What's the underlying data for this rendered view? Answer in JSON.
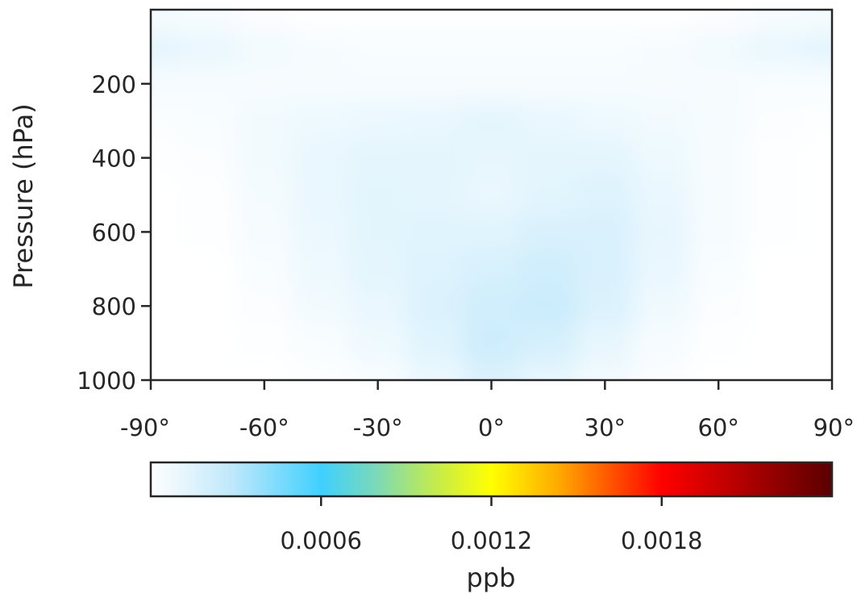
{
  "chart_data": {
    "type": "heatmap",
    "title": "",
    "xlabel": "",
    "ylabel": "Pressure (hPa)",
    "xlim": [
      -90,
      90
    ],
    "ylim": [
      1000,
      0
    ],
    "x_ticks": [
      -90,
      -60,
      -30,
      0,
      30,
      60,
      90
    ],
    "x_tick_labels": [
      "-90°",
      "-60°",
      "-30°",
      "0°",
      "30°",
      "60°",
      "90°"
    ],
    "y_ticks": [
      200,
      400,
      600,
      800,
      1000
    ],
    "y_tick_labels": [
      "200",
      "400",
      "600",
      "800",
      "1000"
    ],
    "grid": false,
    "latitude": [
      -90,
      -75,
      -60,
      -45,
      -30,
      -15,
      0,
      15,
      30,
      45,
      60,
      75,
      90
    ],
    "pressure": [
      25,
      100,
      200,
      300,
      400,
      500,
      600,
      700,
      800,
      900,
      1000
    ],
    "values": [
      [
        5e-05,
        4e-05,
        2e-05,
        1e-05,
        1e-05,
        1e-05,
        1e-05,
        1e-05,
        1e-05,
        1e-05,
        2e-05,
        4e-05,
        5e-05
      ],
      [
        0.00012,
        0.0001,
        6e-05,
        4e-05,
        3e-05,
        3e-05,
        3e-05,
        3e-05,
        3e-05,
        4e-05,
        6e-05,
        0.0001,
        0.00012
      ],
      [
        4e-05,
        4e-05,
        4e-05,
        4e-05,
        4e-05,
        4e-05,
        4e-05,
        4e-05,
        4e-05,
        4e-05,
        4e-05,
        3e-05,
        3e-05
      ],
      [
        2e-05,
        3e-05,
        6e-05,
        8e-05,
        9e-05,
        0.0001,
        0.00012,
        0.0001,
        8e-05,
        6e-05,
        4e-05,
        2e-05,
        1e-05
      ],
      [
        1e-05,
        2e-05,
        6e-05,
        0.0001,
        0.00012,
        0.00012,
        0.00011,
        0.00012,
        0.00012,
        8e-05,
        4e-05,
        1e-05,
        0.0
      ],
      [
        0.0,
        1e-05,
        5e-05,
        0.0001,
        0.00013,
        0.00012,
        0.0001,
        0.00013,
        0.00015,
        0.0001,
        4e-05,
        1e-05,
        0.0
      ],
      [
        0.0,
        1e-05,
        4e-05,
        9e-05,
        0.00013,
        0.00014,
        0.00014,
        0.00017,
        0.00017,
        0.00011,
        4e-05,
        1e-05,
        0.0
      ],
      [
        0.0,
        0.0,
        3e-05,
        8e-05,
        0.00012,
        0.00015,
        0.00018,
        0.00021,
        0.00017,
        0.0001,
        3e-05,
        0.0,
        0.0
      ],
      [
        0.0,
        0.0,
        2e-05,
        6e-05,
        0.0001,
        0.00016,
        0.00021,
        0.00024,
        0.00016,
        7e-05,
        2e-05,
        0.0,
        0.0
      ],
      [
        0.0,
        0.0,
        1e-05,
        3e-05,
        7e-05,
        0.00014,
        0.00022,
        0.00019,
        0.00011,
        4e-05,
        1e-05,
        0.0,
        0.0
      ],
      [
        0.0,
        0.0,
        0.0,
        1e-05,
        3e-05,
        9e-05,
        0.00016,
        0.00011,
        6e-05,
        2e-05,
        0.0,
        0.0,
        0.0
      ]
    ],
    "colorbar": {
      "label": "ppb",
      "vmin": 0,
      "vmax": 0.0024,
      "ticks": [
        0.0006,
        0.0012,
        0.0018
      ],
      "tick_labels": [
        "0.0006",
        "0.0012",
        "0.0018"
      ],
      "colormap": "jet-like (white → light blue → cyan → green → yellow → orange → red → dark red)"
    }
  }
}
